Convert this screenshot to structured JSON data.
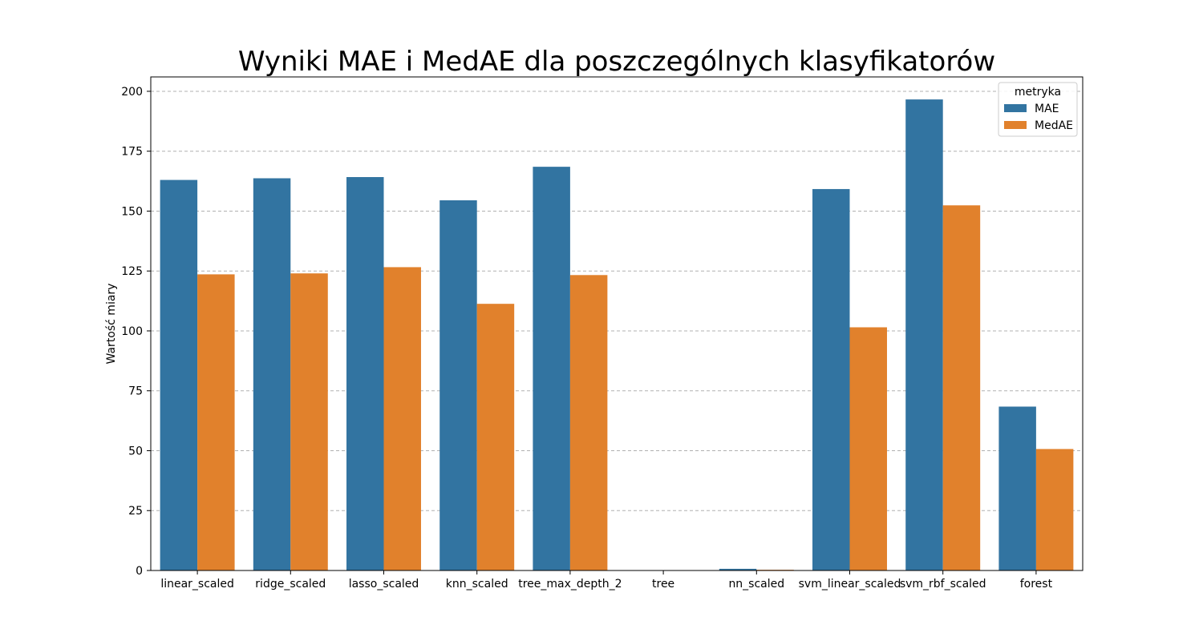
{
  "chart_data": {
    "type": "bar",
    "title": "Wyniki MAE i MedAE dla poszczególnych klasyfikatorów",
    "xlabel": "",
    "ylabel": "Wartość miary",
    "ylim": [
      0,
      206
    ],
    "yticks": [
      0,
      25,
      50,
      75,
      100,
      125,
      150,
      175,
      200
    ],
    "grid": "horizontal dashed",
    "legend": {
      "title": "metryka",
      "placement": "top-right"
    },
    "categories": [
      "linear_scaled",
      "ridge_scaled",
      "lasso_scaled",
      "knn_scaled",
      "tree_max_depth_2",
      "tree",
      "nn_scaled",
      "svm_linear_scaled",
      "svm_rbf_scaled",
      "forest"
    ],
    "series": [
      {
        "name": "MAE",
        "color": "#3274a1",
        "values": [
          163.0,
          163.7,
          164.2,
          154.5,
          168.5,
          0.0,
          0.7,
          159.2,
          196.6,
          68.4
        ]
      },
      {
        "name": "MedAE",
        "color": "#e1812c",
        "values": [
          123.6,
          124.0,
          126.6,
          111.3,
          123.3,
          0.0,
          0.3,
          101.5,
          152.4,
          50.7
        ]
      }
    ]
  }
}
